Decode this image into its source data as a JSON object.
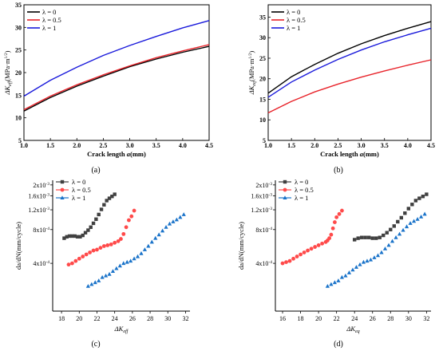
{
  "panels": {
    "a": {
      "caption": "(a)"
    },
    "b": {
      "caption": "(b)"
    },
    "c": {
      "caption": "(c)"
    },
    "d": {
      "caption": "(d)"
    }
  },
  "chart_data": [
    {
      "type": "line",
      "id": "a",
      "xlabel_prefix": "Crack length ",
      "xlabel_var": "a",
      "xlabel_unit": "(mm)",
      "ylabel_main": "ΔK",
      "ylabel_sub": "eff",
      "ylabel_unit": "(MPa·m",
      "ylabel_exp": "1/2",
      "ylabel_close": ")",
      "xlim": [
        1.0,
        4.5
      ],
      "ylim": [
        5,
        35
      ],
      "xticks": [
        "1.0",
        "1.5",
        "2.0",
        "2.5",
        "3.0",
        "3.5",
        "4.0",
        "4.5"
      ],
      "yticks": [
        "5",
        "10",
        "15",
        "20",
        "25",
        "30",
        "35"
      ],
      "series": [
        {
          "name": "λ = 0",
          "color": "#000000",
          "x": [
            1.0,
            1.5,
            2.0,
            2.5,
            3.0,
            3.5,
            4.0,
            4.5
          ],
          "y": [
            11.5,
            14.5,
            17.0,
            19.2,
            21.3,
            23.0,
            24.5,
            25.8
          ]
        },
        {
          "name": "λ = 0.5",
          "color": "#e8232a",
          "x": [
            1.0,
            1.5,
            2.0,
            2.5,
            3.0,
            3.5,
            4.0,
            4.5
          ],
          "y": [
            11.8,
            14.8,
            17.3,
            19.5,
            21.5,
            23.3,
            24.8,
            26.2
          ]
        },
        {
          "name": "λ = 1",
          "color": "#1a1adb",
          "x": [
            1.0,
            1.5,
            2.0,
            2.5,
            3.0,
            3.5,
            4.0,
            4.5
          ],
          "y": [
            14.8,
            18.3,
            21.2,
            23.8,
            26.0,
            28.0,
            29.9,
            31.5
          ]
        }
      ]
    },
    {
      "type": "line",
      "id": "b",
      "xlabel_prefix": "Crack length ",
      "xlabel_var": "a",
      "xlabel_unit": "(mm)",
      "ylabel_main": "ΔK",
      "ylabel_sub": "eq",
      "ylabel_unit": "(MPa·m",
      "ylabel_exp": "1/2",
      "ylabel_close": ")",
      "xlim": [
        1.0,
        4.5
      ],
      "ylim": [
        5,
        38
      ],
      "xticks": [
        "1.0",
        "1.5",
        "2.0",
        "2.5",
        "3.0",
        "3.5",
        "4.0",
        "4.5"
      ],
      "yticks": [
        "5",
        "10",
        "15",
        "20",
        "25",
        "30",
        "35"
      ],
      "series": [
        {
          "name": "λ = 0",
          "color": "#000000",
          "x": [
            1.0,
            1.5,
            2.0,
            2.5,
            3.0,
            3.5,
            4.0,
            4.5
          ],
          "y": [
            16.5,
            20.5,
            23.5,
            26.2,
            28.5,
            30.5,
            32.3,
            33.9
          ]
        },
        {
          "name": "λ = 0.5",
          "color": "#e8232a",
          "x": [
            1.0,
            1.5,
            2.0,
            2.5,
            3.0,
            3.5,
            4.0,
            4.5
          ],
          "y": [
            11.7,
            14.5,
            16.8,
            18.7,
            20.4,
            21.9,
            23.3,
            24.6
          ]
        },
        {
          "name": "λ = 1",
          "color": "#1a1adb",
          "x": [
            1.0,
            1.5,
            2.0,
            2.5,
            3.0,
            3.5,
            4.0,
            4.5
          ],
          "y": [
            15.5,
            19.2,
            22.1,
            24.7,
            27.0,
            29.0,
            30.7,
            32.3
          ]
        }
      ]
    },
    {
      "type": "scatter",
      "id": "c",
      "xlabel_main": "ΔK",
      "xlabel_sub": "eff",
      "ylabel": "da/dN(mm/cycle)",
      "xlim": [
        17,
        32.5
      ],
      "ylim": [
        0.00015,
        0.0022
      ],
      "xticks": [
        "18",
        "20",
        "22",
        "24",
        "26",
        "28",
        "30",
        "32"
      ],
      "yticks": [
        {
          "value": 0.0004,
          "mant": "4x10",
          "exp": "-4"
        },
        {
          "value": 0.0008,
          "mant": "8x10",
          "exp": "-4"
        },
        {
          "value": 0.0012,
          "mant": "1.2x10",
          "exp": "-3"
        },
        {
          "value": 0.0016,
          "mant": "1.6x10",
          "exp": "-3"
        },
        {
          "value": 0.002,
          "mant": "2x10",
          "exp": "-3"
        }
      ],
      "series": [
        {
          "name": "λ = 0",
          "color": "#404040",
          "marker": "square",
          "x": [
            18.3,
            18.6,
            18.9,
            19.2,
            19.5,
            19.8,
            20.1,
            20.4,
            20.7,
            21.0,
            21.3,
            21.6,
            21.9,
            22.2,
            22.5,
            22.8,
            23.1,
            23.4,
            23.7,
            24.0
          ],
          "y": [
            0.00067,
            0.00069,
            0.0007,
            0.0007,
            0.0007,
            0.00069,
            0.00069,
            0.00071,
            0.00075,
            0.00079,
            0.00084,
            0.00091,
            0.00099,
            0.00109,
            0.00121,
            0.00133,
            0.00145,
            0.00152,
            0.00158,
            0.00165
          ]
        },
        {
          "name": "λ = 0.5",
          "color": "#ff4a4a",
          "marker": "circle",
          "x": [
            18.8,
            19.2,
            19.6,
            20.0,
            20.4,
            20.8,
            21.2,
            21.6,
            22.0,
            22.4,
            22.8,
            23.2,
            23.6,
            24.0,
            24.4,
            24.7,
            25.0,
            25.3,
            25.6,
            25.9,
            26.2
          ],
          "y": [
            0.00039,
            0.0004,
            0.00042,
            0.00044,
            0.00046,
            0.00048,
            0.0005,
            0.00052,
            0.00053,
            0.00055,
            0.00057,
            0.00058,
            0.00059,
            0.00061,
            0.00063,
            0.00066,
            0.00073,
            0.00084,
            0.00097,
            0.00105,
            0.00118
          ]
        },
        {
          "name": "λ = 1",
          "color": "#1a73c9",
          "marker": "triangle",
          "x": [
            21.0,
            21.4,
            21.8,
            22.2,
            22.6,
            23.0,
            23.4,
            23.8,
            24.2,
            24.6,
            25.0,
            25.4,
            25.8,
            26.2,
            26.6,
            27.0,
            27.4,
            27.8,
            28.2,
            28.6,
            29.0,
            29.4,
            29.8,
            30.2,
            30.6,
            31.0,
            31.4,
            31.8
          ],
          "y": [
            0.00025,
            0.00026,
            0.00027,
            0.00028,
            0.0003,
            0.00031,
            0.00032,
            0.00034,
            0.00036,
            0.00038,
            0.0004,
            0.00041,
            0.00042,
            0.00044,
            0.00046,
            0.00049,
            0.00053,
            0.00057,
            0.00062,
            0.00067,
            0.00072,
            0.00078,
            0.00084,
            0.0009,
            0.00094,
            0.00098,
            0.00103,
            0.00109
          ]
        }
      ]
    },
    {
      "type": "scatter",
      "id": "d",
      "xlabel_main": "ΔK",
      "xlabel_sub": "eq",
      "ylabel": "da/dN(mm/cycle)",
      "xlim": [
        15.2,
        32.5
      ],
      "ylim": [
        0.00015,
        0.0022
      ],
      "xticks": [
        "16",
        "18",
        "20",
        "22",
        "24",
        "26",
        "28",
        "30",
        "32"
      ],
      "yticks": [
        {
          "value": 0.0004,
          "mant": "4x10",
          "exp": "-4"
        },
        {
          "value": 0.0008,
          "mant": "8x10",
          "exp": "-4"
        },
        {
          "value": 0.0012,
          "mant": "1.2x10",
          "exp": "-3"
        },
        {
          "value": 0.0016,
          "mant": "1.6x10",
          "exp": "-3"
        },
        {
          "value": 0.002,
          "mant": "2x10",
          "exp": "-3"
        }
      ],
      "series": [
        {
          "name": "λ = 0",
          "color": "#404040",
          "marker": "square",
          "x": [
            24.0,
            24.4,
            24.8,
            25.2,
            25.6,
            26.0,
            26.4,
            26.8,
            27.2,
            27.6,
            28.0,
            28.4,
            28.8,
            29.2,
            29.6,
            30.0,
            30.4,
            30.8,
            31.2,
            31.6,
            32.0
          ],
          "y": [
            0.00065,
            0.00067,
            0.00068,
            0.00068,
            0.00068,
            0.00067,
            0.00067,
            0.00068,
            0.00071,
            0.00075,
            0.0008,
            0.00086,
            0.00094,
            0.00102,
            0.00112,
            0.00123,
            0.00134,
            0.00145,
            0.00152,
            0.00158,
            0.00165
          ]
        },
        {
          "name": "λ = 0.5",
          "color": "#ff4a4a",
          "marker": "circle",
          "x": [
            16.0,
            16.4,
            16.8,
            17.2,
            17.6,
            18.0,
            18.4,
            18.8,
            19.2,
            19.6,
            20.0,
            20.4,
            20.8,
            21.0,
            21.2,
            21.4,
            21.6,
            21.8,
            22.0,
            22.3,
            22.6
          ],
          "y": [
            0.0004,
            0.00041,
            0.00042,
            0.00044,
            0.00046,
            0.00048,
            0.0005,
            0.00052,
            0.00054,
            0.00056,
            0.00058,
            0.0006,
            0.00062,
            0.00064,
            0.00067,
            0.00072,
            0.00082,
            0.00093,
            0.00103,
            0.0011,
            0.00118
          ]
        },
        {
          "name": "λ = 1",
          "color": "#1a73c9",
          "marker": "triangle",
          "x": [
            21.0,
            21.4,
            21.8,
            22.2,
            22.6,
            23.0,
            23.4,
            23.8,
            24.2,
            24.6,
            25.0,
            25.4,
            25.8,
            26.2,
            26.6,
            27.0,
            27.4,
            27.8,
            28.2,
            28.6,
            29.0,
            29.4,
            29.8,
            30.2,
            30.6,
            31.0,
            31.4,
            31.8
          ],
          "y": [
            0.00025,
            0.00026,
            0.00027,
            0.00028,
            0.0003,
            0.00031,
            0.00033,
            0.00035,
            0.00037,
            0.00039,
            0.00041,
            0.00042,
            0.00043,
            0.00045,
            0.00047,
            0.0005,
            0.00054,
            0.00058,
            0.00063,
            0.00068,
            0.00073,
            0.00079,
            0.00085,
            0.00091,
            0.00095,
            0.00099,
            0.00104,
            0.0011
          ]
        }
      ]
    }
  ]
}
